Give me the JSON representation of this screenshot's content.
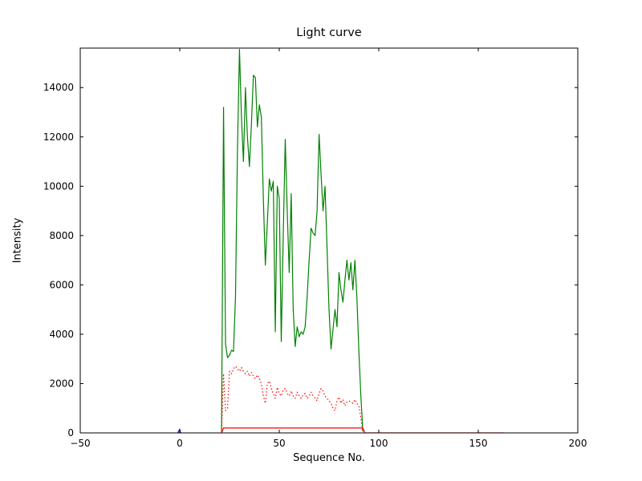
{
  "figure": {
    "background": "#ffffff",
    "frame_color": "#000000"
  },
  "chart_data": {
    "type": "line",
    "title": "Light curve",
    "xlabel": "Sequence No.",
    "ylabel": "Intensity",
    "xlim": [
      -50,
      200
    ],
    "ylim": [
      0,
      15600
    ],
    "grid": false,
    "legend": "none",
    "x_ticks": [
      -50,
      0,
      50,
      100,
      150,
      200
    ],
    "x_tick_labels": [
      "−50",
      "0",
      "50",
      "100",
      "150",
      "200"
    ],
    "y_ticks": [
      0,
      2000,
      4000,
      6000,
      8000,
      10000,
      12000,
      14000
    ],
    "y_tick_labels": [
      "0",
      "2000",
      "4000",
      "6000",
      "8000",
      "10000",
      "12000",
      "14000"
    ],
    "series": [
      {
        "name": "green-intensity",
        "color": "#008000",
        "line_style": "solid",
        "x_start": 21,
        "x_step": 1,
        "y": [
          50,
          13200,
          3600,
          3050,
          3150,
          3350,
          3300,
          5500,
          11500,
          15550,
          12800,
          11000,
          14000,
          12000,
          10800,
          12500,
          14500,
          14400,
          12400,
          13300,
          12800,
          9500,
          6800,
          8500,
          10300,
          9800,
          10200,
          4100,
          10000,
          9500,
          3700,
          8000,
          11900,
          9000,
          6500,
          9700,
          5000,
          3500,
          4300,
          3900,
          4100,
          4000,
          4300,
          5500,
          7000,
          8300,
          8100,
          8000,
          9000,
          12100,
          10500,
          9000,
          10000,
          7500,
          5000,
          3400,
          4200,
          5000,
          4300,
          6500,
          5800,
          5300,
          6200,
          7000,
          6200,
          6900,
          5800,
          7000,
          5500,
          3300,
          1500,
          50
        ]
      },
      {
        "name": "red-dotted",
        "color": "#ff0000",
        "line_style": "dotted",
        "x_start": 21,
        "x_step": 1,
        "y": [
          30,
          2400,
          900,
          1000,
          2500,
          2400,
          2600,
          2700,
          2600,
          2500,
          2650,
          2500,
          2400,
          2500,
          2300,
          2450,
          2300,
          2200,
          2350,
          2200,
          2000,
          1500,
          1200,
          2000,
          2100,
          1800,
          1600,
          1400,
          1850,
          1600,
          1500,
          1750,
          1800,
          1600,
          1500,
          1700,
          1500,
          1400,
          1650,
          1500,
          1400,
          1550,
          1600,
          1400,
          1500,
          1650,
          1500,
          1400,
          1300,
          1600,
          1800,
          1700,
          1500,
          1400,
          1300,
          1200,
          1000,
          900,
          1300,
          1450,
          1200,
          1350,
          1100,
          1250,
          1300,
          1250,
          1200,
          1350,
          1200,
          1100,
          600,
          30
        ]
      },
      {
        "name": "red-solid",
        "color": "#ff0000",
        "line_style": "solid",
        "x": [
          21,
          22,
          92,
          93,
          163
        ],
        "y": [
          0,
          200,
          200,
          0,
          0
        ]
      },
      {
        "name": "blue-marker",
        "color": "#0000ff",
        "line_style": "solid",
        "x": [
          -1,
          0,
          0.4,
          1
        ],
        "y": [
          0,
          150,
          0,
          0
        ]
      }
    ]
  }
}
